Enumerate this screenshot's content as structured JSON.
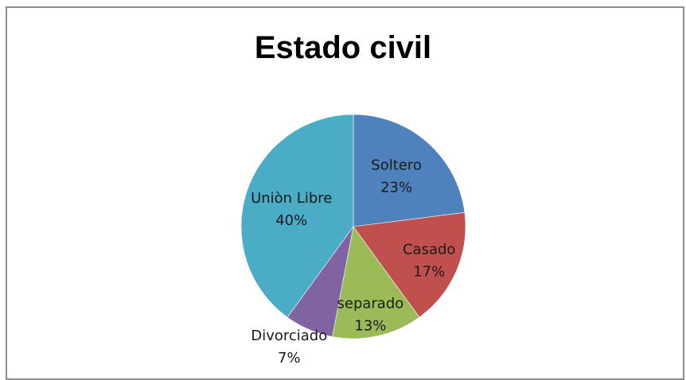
{
  "chart_data": {
    "type": "pie",
    "title": "Estado civil",
    "categories": [
      "Soltero",
      "Casado",
      "separado",
      "Divorciado",
      "Uniòn Libre"
    ],
    "values": [
      23,
      17,
      13,
      7,
      40
    ],
    "percent_labels": [
      "23%",
      "17%",
      "13%",
      "7%",
      "40%"
    ],
    "colors": [
      "#4f81bd",
      "#c0504d",
      "#9bbb59",
      "#8064a2",
      "#4bacc6"
    ],
    "start_angle_deg": 0,
    "direction": "clockwise",
    "legend": "none",
    "data_labels": "category-and-percent"
  }
}
